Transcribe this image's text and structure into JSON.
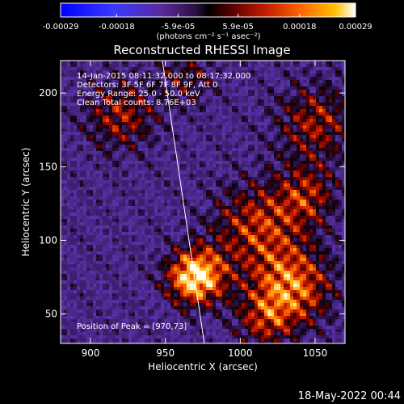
{
  "colorbar": {
    "ticks": [
      "-0.00029",
      "-0.00018",
      "-5.9e-05",
      "5.9e-05",
      "0.00018",
      "0.00029"
    ],
    "tick_values": [
      -0.00029,
      -0.00018,
      -5.9e-05,
      5.9e-05,
      0.00018,
      0.00029
    ],
    "range": [
      -0.00029,
      0.00029
    ],
    "units": "(photons cm⁻² s⁻¹ asec⁻²)",
    "colors": [
      "#0000ff",
      "#3a3aff",
      "#5a2aa0",
      "#2b1040",
      "#000000",
      "#5a0000",
      "#c81e00",
      "#ff6a00",
      "#ffc000",
      "#ffffff"
    ]
  },
  "chart_data": {
    "type": "heatmap",
    "title": "Reconstructed RHESSI Image",
    "xlabel": "Heliocentric X (arcsec)",
    "ylabel": "Heliocentric Y (arcsec)",
    "xlim": [
      880,
      1070
    ],
    "ylim": [
      30,
      222
    ],
    "xticks": [
      900,
      950,
      1000,
      1050
    ],
    "yticks": [
      50,
      100,
      150,
      200
    ],
    "annotations": [
      "14-Jan-2015 08:11:32.000 to 08:17:32.000",
      "Detectors: 3F 5F 6F 7F 8F 9F, Att 0",
      "Energy Range: 25.0 - 50.0 keV",
      "Clean     Total counts: 8.76E+03"
    ],
    "peak_label": "Position of Peak = [970,73]",
    "peak": [
      970,
      73
    ],
    "limb_line": [
      [
        948,
        222
      ],
      [
        976,
        30
      ]
    ],
    "sources": [
      {
        "x": 970,
        "y": 75,
        "amp": 1.0,
        "sigma": 14
      },
      {
        "x": 1035,
        "y": 68,
        "amp": 0.7,
        "sigma": 20
      },
      {
        "x": 1010,
        "y": 110,
        "amp": 0.55,
        "sigma": 22
      },
      {
        "x": 920,
        "y": 185,
        "amp": 0.5,
        "sigma": 18
      },
      {
        "x": 1050,
        "y": 180,
        "amp": 0.5,
        "sigma": 20
      },
      {
        "x": 1045,
        "y": 130,
        "amp": 0.45,
        "sigma": 15
      },
      {
        "x": 965,
        "y": 210,
        "amp": 0.35,
        "sigma": 14
      },
      {
        "x": 1015,
        "y": 45,
        "amp": 0.4,
        "sigma": 14
      }
    ]
  },
  "timestamp": "18-May-2022 00:44"
}
